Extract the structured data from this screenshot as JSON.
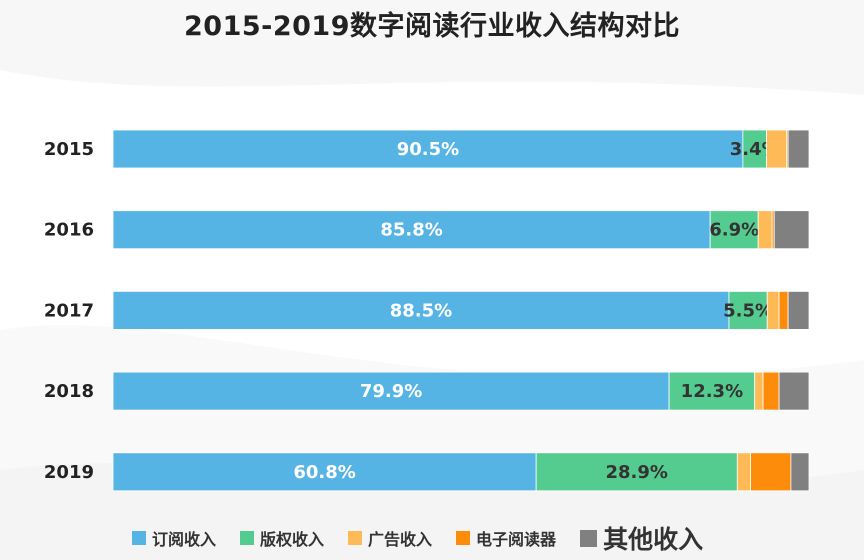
{
  "title": "2015-2019数字阅读行业收入结构对比",
  "colors": {
    "subscription": "#56b4e4",
    "copyright": "#55cc8f",
    "advertising": "#fdba57",
    "ereader": "#fd8c0b",
    "other": "#808080"
  },
  "legend": [
    {
      "label": "订阅收入",
      "color": "#56b4e4"
    },
    {
      "label": "版权收入",
      "color": "#55cc8f"
    },
    {
      "label": "广告收入",
      "color": "#fdba57"
    },
    {
      "label": "电子阅读器",
      "color": "#fd8c0b"
    },
    {
      "label": "其他收入",
      "color": "#808080"
    }
  ],
  "chart_data": {
    "type": "bar",
    "orientation": "horizontal",
    "stacked": true,
    "title": "2015-2019数字阅读行业收入结构对比",
    "categories": [
      "2015",
      "2016",
      "2017",
      "2018",
      "2019"
    ],
    "xlim": [
      0,
      100
    ],
    "grid": false,
    "legend_position": "bottom",
    "series": [
      {
        "name": "订阅收入",
        "values": [
          90.5,
          85.8,
          88.5,
          79.9,
          60.8
        ],
        "labels": [
          "90.5%",
          "85.8%",
          "88.5%",
          "79.9%",
          "60.8%"
        ]
      },
      {
        "name": "版权收入",
        "values": [
          3.4,
          6.9,
          5.5,
          12.3,
          28.9
        ],
        "labels": [
          "3.4%",
          "6.9%",
          "5.5%",
          "12.3%",
          "28.9%"
        ]
      },
      {
        "name": "广告收入",
        "values": [
          2.9,
          2.0,
          1.7,
          1.2,
          1.9
        ]
      },
      {
        "name": "电子阅读器",
        "values": [
          0.2,
          0.3,
          1.3,
          2.3,
          5.8
        ]
      },
      {
        "name": "其他收入",
        "values": [
          3.0,
          5.0,
          3.0,
          4.3,
          2.6
        ]
      }
    ]
  }
}
